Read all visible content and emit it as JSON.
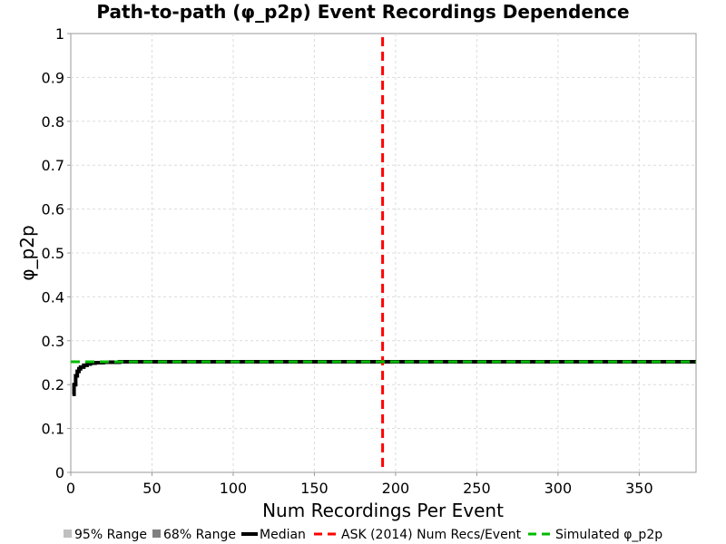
{
  "chart_data": {
    "type": "line",
    "title": "Path-to-path (φ_p2p) Event Recordings Dependence",
    "xlabel": "Num Recordings Per Event",
    "ylabel": "φ_p2p",
    "xlim": [
      0,
      385
    ],
    "ylim": [
      0,
      1
    ],
    "x_ticks": [
      0,
      50,
      100,
      150,
      200,
      250,
      300,
      350
    ],
    "y_ticks": [
      0,
      0.1,
      0.2,
      0.3,
      0.4,
      0.5,
      0.6,
      0.7,
      0.8,
      0.9,
      1
    ],
    "y_tick_labels": [
      "0",
      "0.1",
      "0.2",
      "0.3",
      "0.4",
      "0.5",
      "0.6",
      "0.7",
      "0.8",
      "0.9",
      "1"
    ],
    "grid": true,
    "legend_position": "bottom",
    "series": [
      {
        "name": "95% Range",
        "color": "#c0c0c0",
        "style": "fill",
        "x": [],
        "y_low": [],
        "y_high": []
      },
      {
        "name": "68% Range",
        "color": "#808080",
        "style": "fill",
        "x": [],
        "y_low": [],
        "y_high": []
      },
      {
        "name": "Median",
        "color": "#000000",
        "style": "solid",
        "x": [
          1,
          2,
          3,
          4,
          5,
          6,
          8,
          10,
          12,
          15,
          20,
          30,
          50,
          100,
          150,
          200,
          250,
          300,
          350,
          385
        ],
        "y": [
          0.178,
          0.2,
          0.22,
          0.23,
          0.236,
          0.24,
          0.244,
          0.247,
          0.249,
          0.25,
          0.251,
          0.252,
          0.252,
          0.252,
          0.252,
          0.252,
          0.252,
          0.252,
          0.252,
          0.252
        ]
      },
      {
        "name": "ASK (2014) Num Recs/Event",
        "color": "#ff0000",
        "style": "dashed",
        "orientation": "vertical",
        "x_value": 192
      },
      {
        "name": "Simulated φ_p2p",
        "color": "#00bb00",
        "style": "dashed",
        "orientation": "horizontal",
        "y_value": 0.252
      }
    ]
  }
}
